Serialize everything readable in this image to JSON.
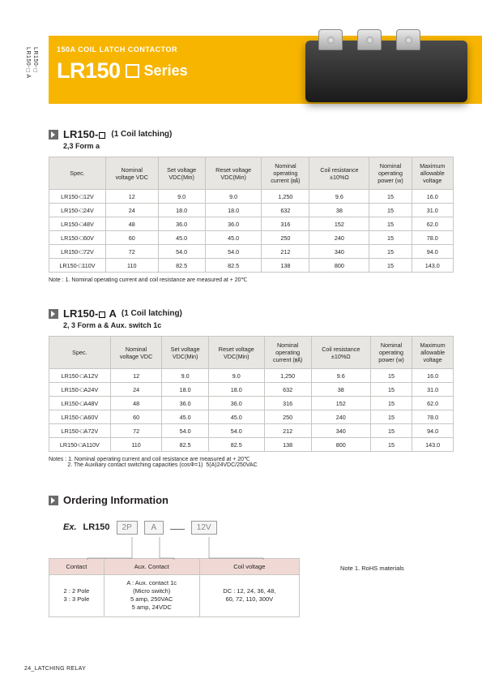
{
  "sidebar": {
    "line1": "LR150-□",
    "line2": "LR150-□A"
  },
  "banner": {
    "sub": "150A COIL LATCH  CONTACTOR",
    "title_prefix": "LR150",
    "title_suffix": "Series"
  },
  "sec1": {
    "heading": "LR150-",
    "note": "(1 Coil latching)",
    "sub": "2,3 Form a",
    "columns": [
      "Spec.",
      "Nominal\nvoltage VDC",
      "Set voltage\nVDC(Min)",
      "Reset voltage\nVDC(Min)",
      "Nominal\noperating\ncurrent (㎃)",
      "Coil resistance\n±10%Ω",
      "Nominal\noperating\npower (w)",
      "Maximum\nallowable\nvoltage"
    ],
    "rows": [
      [
        "LR150-□12V",
        "12",
        "9.0",
        "9.0",
        "1,250",
        "9.6",
        "15",
        "16.0"
      ],
      [
        "LR150-□24V",
        "24",
        "18.0",
        "18.0",
        "632",
        "38",
        "15",
        "31.0"
      ],
      [
        "LR150-□48V",
        "48",
        "36.0",
        "36.0",
        "316",
        "152",
        "15",
        "62.0"
      ],
      [
        "LR150-□60V",
        "60",
        "45.0",
        "45.0",
        "250",
        "240",
        "15",
        "78.0"
      ],
      [
        "LR150-□72V",
        "72",
        "54.0",
        "54.0",
        "212",
        "340",
        "15",
        "94.0"
      ],
      [
        "LR150-□110V",
        "110",
        "82.5",
        "82.5",
        "138",
        "800",
        "15",
        "143.0"
      ]
    ],
    "note_below": "Note : 1. Nominal operating current and coil resistance are measured at + 20℃"
  },
  "sec2": {
    "heading": "LR150-",
    "suffix": "A",
    "note": "(1 Coil latching)",
    "sub": "2, 3 Form a & Aux. switch 1c",
    "rows": [
      [
        "LR150-□A12V",
        "12",
        "9.0",
        "9.0",
        "1,250",
        "9.6",
        "15",
        "16.0"
      ],
      [
        "LR150-□A24V",
        "24",
        "18.0",
        "18.0",
        "632",
        "38",
        "15",
        "31.0"
      ],
      [
        "LR150-□A48V",
        "48",
        "36.0",
        "36.0",
        "316",
        "152",
        "15",
        "62.0"
      ],
      [
        "LR150-□A60V",
        "60",
        "45.0",
        "45.0",
        "250",
        "240",
        "15",
        "78.0"
      ],
      [
        "LR150-□A72V",
        "72",
        "54.0",
        "54.0",
        "212",
        "340",
        "15",
        "94.0"
      ],
      [
        "LR150-□A110V",
        "110",
        "82.5",
        "82.5",
        "138",
        "800",
        "15",
        "143.0"
      ]
    ],
    "note_below": "Notes : 1. Nominal operating current and coil resistance are measured at + 20℃\n            2. The Auxiliary contact switching capacities (cosΦ=1)  5(A)24VDC/250VAC"
  },
  "ordering": {
    "title": "Ordering Information",
    "ex": "Ex.",
    "lr": "LR150",
    "p1": "2P",
    "p2": "A",
    "p3": "12V",
    "columns": [
      "Contact",
      "Aux. Contact",
      "Coil voltage"
    ],
    "cells": [
      "2 : 2 Pole\n3 : 3 Pole",
      "A : Aux. contact 1c\n(Micro switch)\n5 amp,  250VAC\n5 amp,  24VDC",
      "DC : 12, 24, 36, 48,\n60, 72, 110, 300V"
    ],
    "rohs": "Note 1. RoHS materials"
  },
  "footer": "24_LATCHING RELAY"
}
